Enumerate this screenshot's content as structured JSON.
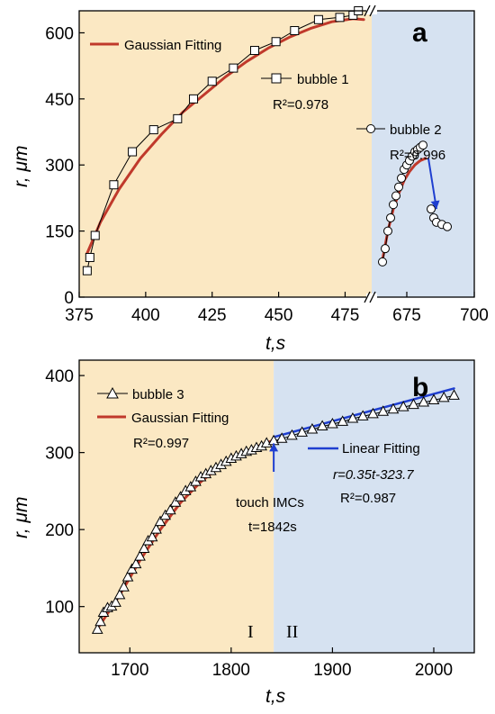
{
  "chart_data": [
    {
      "type": "scatter",
      "panel_label": "a",
      "xlabel": "t,s",
      "ylabel": "r, μm",
      "x_segments": [
        {
          "range": [
            375,
            485
          ],
          "ticks": [
            375,
            400,
            425,
            450,
            475
          ],
          "background": "#fbe8c3"
        },
        {
          "range": [
            662,
            700
          ],
          "ticks": [
            675,
            700
          ],
          "background": "#d6e2f1"
        }
      ],
      "x_ticklabels": [
        "375",
        "400",
        "425",
        "450",
        "475",
        "675",
        "700"
      ],
      "ylim": [
        0,
        650
      ],
      "yticks": [
        0,
        150,
        300,
        450,
        600
      ],
      "y_ticklabels": [
        "0",
        "150",
        "300",
        "450",
        "600"
      ],
      "grid": false,
      "legend_labels": {
        "fit": "Gaussian Fitting",
        "bubble1": "bubble 1",
        "bubble2": "bubble 2"
      },
      "annotations": {
        "r2_bubble1": "R²=0.978",
        "r2_bubble2": "R²=0.996"
      },
      "series": [
        {
          "name": "bubble 1",
          "marker": "square",
          "x": [
            378,
            379,
            381,
            388,
            395,
            403,
            412,
            418,
            425,
            433,
            441,
            449,
            456,
            465,
            473,
            478,
            480
          ],
          "y": [
            60,
            90,
            140,
            255,
            330,
            380,
            405,
            450,
            490,
            520,
            560,
            580,
            605,
            630,
            635,
            640,
            650
          ]
        },
        {
          "name": "bubble 2",
          "marker": "circle",
          "x": [
            666,
            667,
            668,
            669,
            670,
            671,
            672,
            673,
            674,
            675,
            676,
            677,
            678,
            679,
            680,
            681,
            684,
            685,
            686,
            688,
            690
          ],
          "y": [
            80,
            110,
            150,
            180,
            210,
            230,
            250,
            270,
            290,
            300,
            310,
            320,
            330,
            335,
            340,
            345,
            200,
            180,
            170,
            165,
            160
          ]
        },
        {
          "name": "Gaussian Fitting",
          "line": true,
          "segments": [
            {
              "x": [
                378,
                383,
                390,
                398,
                406,
                414,
                422,
                430,
                438,
                446,
                454,
                462,
                470,
                478,
                482
              ],
              "y": [
                100,
                170,
                245,
                315,
                370,
                420,
                460,
                500,
                535,
                565,
                590,
                610,
                625,
                632,
                630
              ]
            },
            {
              "x": [
                666,
                668,
                670,
                672,
                674,
                676,
                678,
                680,
                682
              ],
              "y": [
                85,
                150,
                200,
                235,
                265,
                285,
                300,
                310,
                315
              ]
            }
          ]
        }
      ],
      "arrow": {
        "from": [
          683,
          315
        ],
        "to": [
          686,
          200
        ],
        "color": "#1f3fd0"
      }
    },
    {
      "type": "scatter",
      "panel_label": "b",
      "xlabel": "t,s",
      "ylabel": "r, μm",
      "xlim": [
        1650,
        2040
      ],
      "xticks": [
        1700,
        1800,
        1900,
        2000
      ],
      "x_ticklabels": [
        "1700",
        "1800",
        "1900",
        "2000"
      ],
      "ylim": [
        40,
        420
      ],
      "yticks": [
        100,
        200,
        300,
        400
      ],
      "y_ticklabels": [
        "100",
        "200",
        "300",
        "400"
      ],
      "grid": false,
      "regions": [
        {
          "label": "I",
          "x": [
            1650,
            1842
          ],
          "background": "#fbe8c3"
        },
        {
          "label": "II",
          "x": [
            1842,
            2040
          ],
          "background": "#d6e2f1"
        }
      ],
      "legend_labels": {
        "bubble3": "bubble 3",
        "gauss": "Gaussian Fitting",
        "linear": "Linear Fitting"
      },
      "annotations": {
        "r2_gauss": "R²=0.997",
        "linear_eq": "r=0.35t-323.7",
        "r2_linear": "R²=0.987",
        "touch_line1": "touch IMCs",
        "touch_line2": "t=1842s",
        "region_I": "I",
        "region_II": "II"
      },
      "series": [
        {
          "name": "bubble 3",
          "marker": "triangle",
          "x": [
            1668,
            1671,
            1674,
            1678,
            1682,
            1686,
            1690,
            1694,
            1698,
            1702,
            1706,
            1710,
            1714,
            1718,
            1722,
            1726,
            1730,
            1735,
            1740,
            1745,
            1750,
            1755,
            1760,
            1765,
            1770,
            1775,
            1780,
            1785,
            1790,
            1795,
            1800,
            1805,
            1810,
            1815,
            1820,
            1825,
            1830,
            1835,
            1842,
            1850,
            1860,
            1870,
            1880,
            1890,
            1900,
            1910,
            1920,
            1930,
            1940,
            1950,
            1960,
            1970,
            1980,
            1990,
            2000,
            2010,
            2020
          ],
          "y": [
            70,
            80,
            92,
            98,
            100,
            105,
            115,
            125,
            138,
            148,
            155,
            165,
            175,
            185,
            190,
            200,
            210,
            218,
            225,
            235,
            242,
            250,
            255,
            262,
            268,
            272,
            276,
            280,
            284,
            288,
            292,
            295,
            298,
            301,
            303,
            306,
            308,
            312,
            315,
            318,
            322,
            326,
            330,
            334,
            337,
            340,
            344,
            347,
            350,
            353,
            356,
            359,
            362,
            365,
            368,
            371,
            374
          ]
        },
        {
          "name": "Gaussian Fitting",
          "line": true,
          "x": [
            1670,
            1690,
            1710,
            1730,
            1750,
            1770,
            1790,
            1810,
            1830,
            1842
          ],
          "y": [
            75,
            115,
            160,
            200,
            235,
            262,
            283,
            299,
            310,
            316
          ]
        },
        {
          "name": "Linear Fitting",
          "line": true,
          "x": [
            1842,
            2020
          ],
          "y": [
            320.2,
            383.3
          ]
        }
      ],
      "arrow": {
        "from": [
          1842,
          275
        ],
        "to": [
          1842,
          312
        ],
        "color": "#1f3fd0"
      }
    }
  ]
}
